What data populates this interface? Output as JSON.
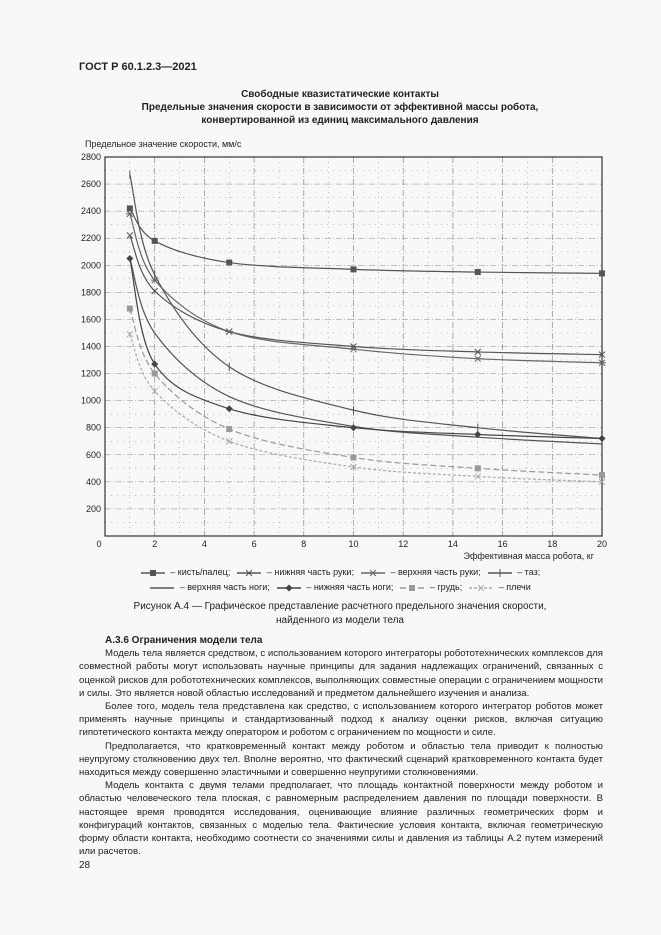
{
  "header": "ГОСТ Р 60.1.2.3—2021",
  "figure_title": [
    "Свободные квазистатические контакты",
    "Предельные значения скорости в зависимости от эффективной массы робота,",
    "конвертированной из единиц максимального давления"
  ],
  "chart_data": {
    "type": "line",
    "title": "Свободные квазистатические контакты. Предельные значения скорости в зависимости от эффективной массы робота, конвертированной из единиц максимального давления",
    "ylabel": "Предельное значение скорости, мм/с",
    "xlabel": "Эффективная масса робота, кг",
    "xlim": [
      0,
      20
    ],
    "ylim": [
      0,
      2800
    ],
    "xticks": [
      0,
      2,
      4,
      6,
      8,
      10,
      12,
      14,
      16,
      18,
      20
    ],
    "yticks": [
      200,
      400,
      600,
      800,
      1000,
      1200,
      1400,
      1600,
      1800,
      2000,
      2200,
      2400,
      2600,
      2800
    ],
    "grid": true,
    "legend_position": "bottom",
    "x": [
      1,
      2,
      5,
      10,
      15,
      20
    ],
    "series": [
      {
        "name": "кисть/палец",
        "marker": "square",
        "color": "#555555",
        "dash": "",
        "values": [
          2420,
          2180,
          2020,
          1970,
          1950,
          1940
        ]
      },
      {
        "name": "нижняя часть руки",
        "marker": "x",
        "color": "#555555",
        "dash": "",
        "values": [
          2220,
          1810,
          1510,
          1400,
          1360,
          1340
        ]
      },
      {
        "name": "верхняя часть руки",
        "marker": "star",
        "color": "#666666",
        "dash": "",
        "values": [
          2380,
          1890,
          1510,
          1380,
          1310,
          1280
        ]
      },
      {
        "name": "таз",
        "marker": "plus",
        "color": "#555555",
        "dash": "",
        "values": [
          2670,
          1930,
          1250,
          930,
          800,
          720
        ]
      },
      {
        "name": "верхняя часть ноги",
        "marker": "none",
        "color": "#555555",
        "dash": "",
        "values": [
          2050,
          1500,
          1030,
          810,
          730,
          680
        ]
      },
      {
        "name": "нижняя часть ноги",
        "marker": "diamond",
        "color": "#444444",
        "dash": "",
        "values": [
          2050,
          1270,
          940,
          800,
          750,
          720
        ]
      },
      {
        "name": "грудь",
        "marker": "square",
        "color": "#999999",
        "dash": "6 3",
        "values": [
          1680,
          1200,
          790,
          580,
          500,
          450
        ]
      },
      {
        "name": "плечи",
        "marker": "x",
        "color": "#aaaaaa",
        "dash": "3 2",
        "values": [
          1490,
          1070,
          700,
          510,
          440,
          400
        ]
      }
    ]
  },
  "legend_sep": " – ",
  "caption": [
    "Рисунок А.4 — Графическое представление расчетного предельного значения скорости,",
    "найденного из модели тела"
  ],
  "section_title": "А.3.6 Ограничения модели тела",
  "paragraphs": [
    "Модель тела является средством, с использованием которого интеграторы робототехнических комплексов для совместной работы могут использовать научные принципы для задания надлежащих ограничений, связанных с оценкой рисков для робототехнических комплексов, выполняющих совместные операции с ограничением мощности и силы. Это является новой областью исследований и предметом дальнейшего изучения и анализа.",
    "Более того, модель тела представлена как средство, с использованием которого интегратор роботов может применять научные принципы и стандартизованный подход к анализу оценки рисков, включая ситуацию гипотетического контакта между оператором и роботом с ограничением по мощности и силе.",
    "Предполагается, что кратковременный контакт между роботом и областью тела приводит к полностью неупругому столкновению двух тел. Вполне вероятно, что фактический сценарий кратковременного контакта будет находиться между совершенно эластичными и совершенно неупругими столкновениями.",
    "Модель контакта с двумя телами предполагает, что площадь контактной поверхности между роботом и областью человеческого тела плоская, с равномерным распределением давления по площади поверхности. В настоящее время проводятся исследования, оценивающие влияние различных геометрических форм и конфигураций контактов, связанных с моделью тела. Фактические условия контакта, включая геометрическую форму области контакта, необходимо соотнести со значениями силы и давления из таблицы А.2 путем измерений или расчетов."
  ],
  "page_number": "28"
}
